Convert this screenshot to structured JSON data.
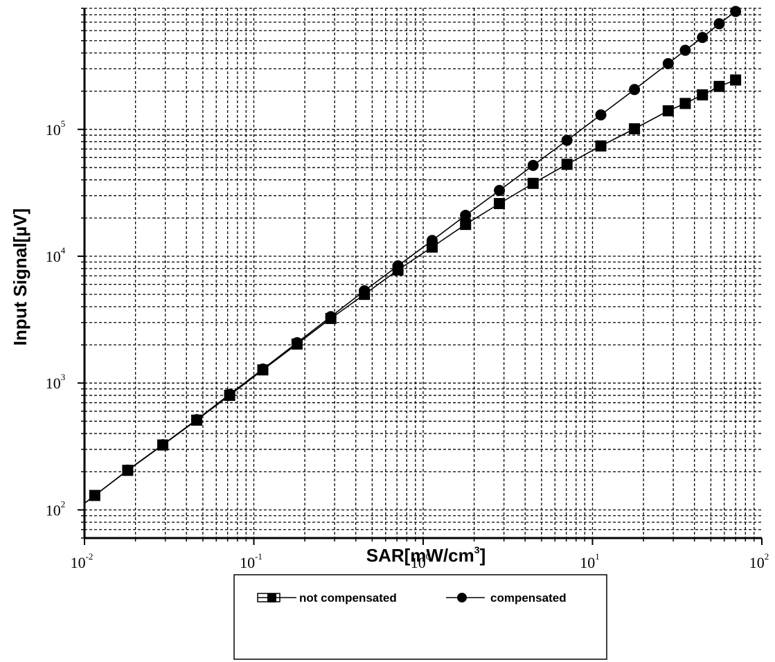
{
  "chart_data": {
    "type": "line",
    "title": "",
    "xlabel": "SAR[mW/cm",
    "xlabel_sup": "3",
    "xlabel_end": "]",
    "ylabel": "Input Signal[µV]",
    "x_scale": "log",
    "y_scale": "log",
    "xlim": [
      0.01,
      100
    ],
    "ylim": [
      60,
      900000
    ],
    "grid": true,
    "legend_position": "bottom-center",
    "x_ticks": [
      {
        "base": "10",
        "exp": "-2",
        "value": 0.01
      },
      {
        "base": "10",
        "exp": "-1",
        "value": 0.1
      },
      {
        "base": "10",
        "exp": "0",
        "value": 1
      },
      {
        "base": "10",
        "exp": "1",
        "value": 10
      },
      {
        "base": "10",
        "exp": "2",
        "value": 100
      }
    ],
    "y_ticks": [
      {
        "base": "10",
        "exp": "2",
        "value": 100
      },
      {
        "base": "10",
        "exp": "3",
        "value": 1000
      },
      {
        "base": "10",
        "exp": "4",
        "value": 10000
      },
      {
        "base": "10",
        "exp": "5",
        "value": 100000
      }
    ],
    "series": [
      {
        "name": "not compensated",
        "marker": "square",
        "x": [
          0.0115,
          0.018,
          0.029,
          0.046,
          0.072,
          0.113,
          0.18,
          0.285,
          0.45,
          0.71,
          1.13,
          1.78,
          2.82,
          4.46,
          7.07,
          11.2,
          17.7,
          28.0,
          35.3,
          44.6,
          56.0,
          70.0
        ],
        "y": [
          130,
          205,
          325,
          510,
          800,
          1270,
          2030,
          3230,
          5000,
          7800,
          11800,
          17800,
          26000,
          37500,
          53000,
          74000,
          101000,
          140000,
          160000,
          187000,
          218000,
          245000
        ]
      },
      {
        "name": "compensated",
        "marker": "circle",
        "x": [
          0.0115,
          0.018,
          0.029,
          0.046,
          0.072,
          0.113,
          0.18,
          0.285,
          0.45,
          0.71,
          1.13,
          1.78,
          2.82,
          4.46,
          7.07,
          11.2,
          17.7,
          28.0,
          35.3,
          44.6,
          56.0,
          70.0
        ],
        "y": [
          130,
          206,
          327,
          515,
          815,
          1290,
          2080,
          3340,
          5340,
          8400,
          13300,
          21000,
          33000,
          52000,
          82000,
          130000,
          206000,
          330000,
          420000,
          530000,
          680000,
          850000
        ]
      }
    ]
  }
}
